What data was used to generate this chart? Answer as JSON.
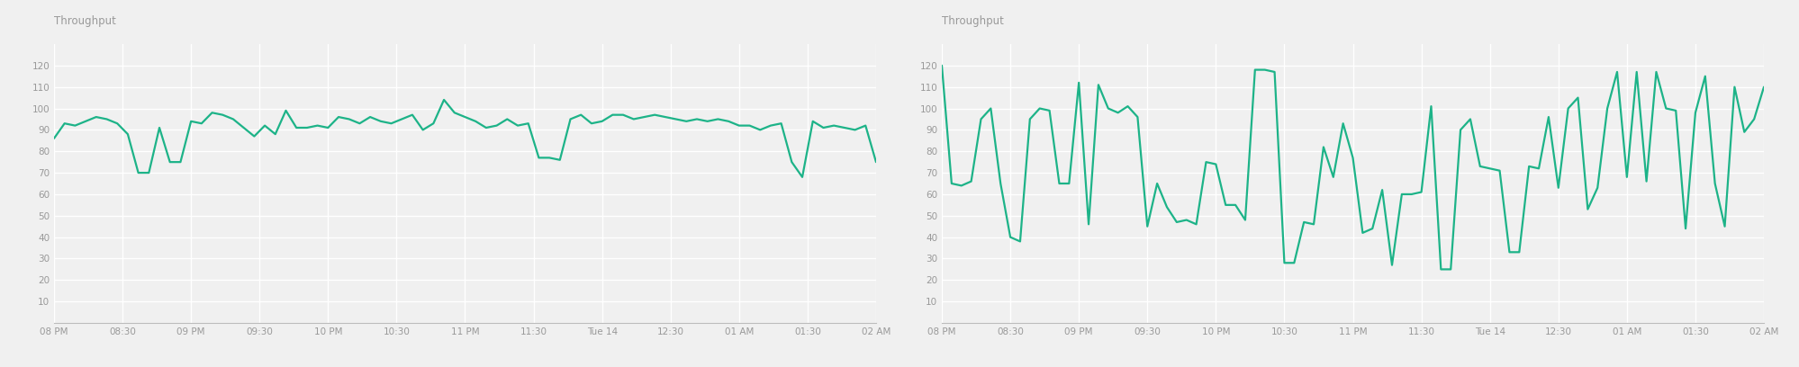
{
  "line_color": "#1db388",
  "line_width": 1.6,
  "bg_color": "#f0f0f0",
  "grid_color": "#ffffff",
  "axis_color": "#bbbbbb",
  "text_color": "#999999",
  "ylabel": "Throughput",
  "ylim": [
    0,
    130
  ],
  "yticks": [
    0,
    10,
    20,
    30,
    40,
    50,
    60,
    70,
    80,
    90,
    100,
    110,
    120
  ],
  "ytick_labels": [
    "",
    "10",
    "20",
    "30",
    "40",
    "50",
    "60",
    "70",
    "80",
    "90",
    "100",
    "110",
    "120"
  ],
  "xtick_labels": [
    "08 PM",
    "08:30",
    "09 PM",
    "09:30",
    "10 PM",
    "10:30",
    "11 PM",
    "11:30",
    "Tue 14",
    "12:30",
    "01 AM",
    "01:30",
    "02 AM"
  ],
  "chart1_data": [
    86,
    93,
    92,
    94,
    96,
    95,
    93,
    88,
    70,
    70,
    91,
    75,
    75,
    94,
    93,
    98,
    97,
    95,
    91,
    87,
    92,
    88,
    99,
    91,
    91,
    92,
    91,
    96,
    95,
    93,
    96,
    94,
    93,
    95,
    97,
    90,
    93,
    104,
    98,
    96,
    94,
    91,
    92,
    95,
    92,
    93,
    77,
    77,
    76,
    95,
    97,
    93,
    94,
    97,
    97,
    95,
    96,
    97,
    96,
    95,
    94,
    95,
    94,
    95,
    94,
    92,
    92,
    90,
    92,
    93,
    75,
    68,
    94,
    91,
    92,
    91,
    90,
    92,
    75
  ],
  "chart2_data": [
    120,
    65,
    64,
    66,
    95,
    100,
    65,
    40,
    38,
    95,
    100,
    99,
    65,
    65,
    112,
    46,
    111,
    100,
    98,
    101,
    96,
    45,
    65,
    54,
    47,
    48,
    46,
    75,
    74,
    55,
    55,
    48,
    118,
    118,
    117,
    28,
    28,
    47,
    46,
    82,
    68,
    93,
    77,
    42,
    44,
    62,
    27,
    60,
    60,
    61,
    101,
    25,
    25,
    90,
    95,
    73,
    72,
    71,
    33,
    33,
    73,
    72,
    96,
    63,
    100,
    105,
    53,
    63,
    100,
    117,
    68,
    117,
    66,
    117,
    100,
    99,
    44,
    98,
    115,
    65,
    45,
    110,
    89,
    95,
    110
  ]
}
